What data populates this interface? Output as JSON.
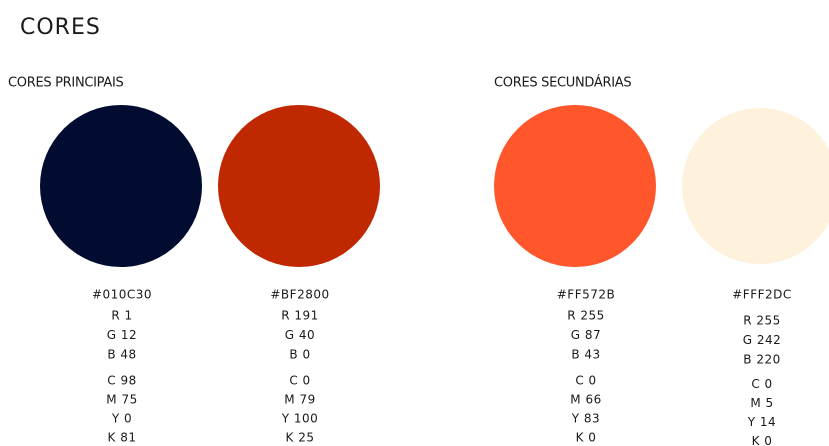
{
  "title": "CORES",
  "groups": [
    {
      "label": "CORES PRINCIPAIS",
      "swatches": [
        {
          "hex": "#010C30",
          "color": "#010C30",
          "rgb": [
            "R 1",
            "G 12",
            "B 48"
          ],
          "cmyk": [
            "C 98",
            "M 75",
            "Y 0",
            "K 81"
          ]
        },
        {
          "hex": "#BF2800",
          "color": "#BF2800",
          "rgb": [
            "R 191",
            "G 40",
            "B 0"
          ],
          "cmyk": [
            "C 0",
            "M 79",
            "Y 100",
            "K 25"
          ]
        }
      ]
    },
    {
      "label": "CORES SECUNDÁRIAS",
      "swatches": [
        {
          "hex": "#FF572B",
          "color": "#FF572B",
          "rgb": [
            "R 255",
            "G 87",
            "B 43"
          ],
          "cmyk": [
            "C 0",
            "M 66",
            "Y 83",
            "K 0"
          ]
        },
        {
          "hex": "#FFF2DC",
          "color": "#FFF2DC",
          "rgb": [
            "R 255",
            "G 242",
            "B 220"
          ],
          "cmyk": [
            "C 0",
            "M 5",
            "Y 14",
            "K 0"
          ]
        }
      ]
    }
  ]
}
